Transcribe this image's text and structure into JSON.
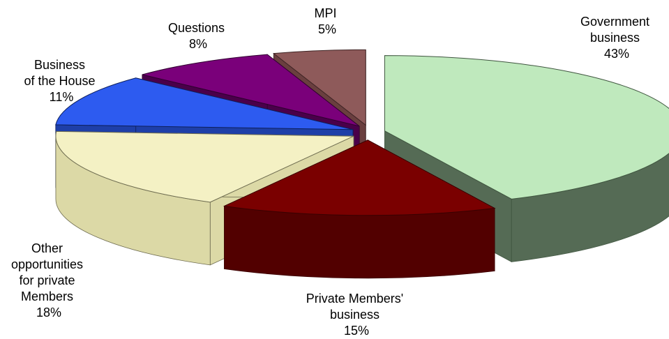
{
  "chart_data": {
    "type": "pie",
    "style": "3d-exploded",
    "title": "",
    "legend": "none",
    "slices": [
      {
        "lines": [
          "Government",
          "business"
        ],
        "pct": "43%",
        "value": 43,
        "color": "#bfe9bd",
        "side_color": "#556b55",
        "edge": "#3f553f"
      },
      {
        "lines": [
          "Private Members'",
          "business"
        ],
        "pct": "15%",
        "value": 15,
        "color": "#7a0000",
        "side_color": "#520000",
        "edge": "#3a0000"
      },
      {
        "lines": [
          "Other",
          "opportunities",
          "for private",
          "Members"
        ],
        "pct": "18%",
        "value": 18,
        "color": "#f4f1c4",
        "side_color": "#dcd9a6",
        "edge": "#6e6c50"
      },
      {
        "lines": [
          "Business",
          "of the House"
        ],
        "pct": "11%",
        "value": 11,
        "color": "#2d5bf0",
        "side_color": "#1e3fa8",
        "edge": "#0d1f5a"
      },
      {
        "lines": [
          "Questions"
        ],
        "pct": "8%",
        "value": 8,
        "color": "#7a007a",
        "side_color": "#4a004a",
        "edge": "#2e002e"
      },
      {
        "lines": [
          "MPI"
        ],
        "pct": "5%",
        "value": 5,
        "color": "#8e5a5a",
        "side_color": "#6a3f3f",
        "edge": "#3e2424"
      }
    ]
  }
}
